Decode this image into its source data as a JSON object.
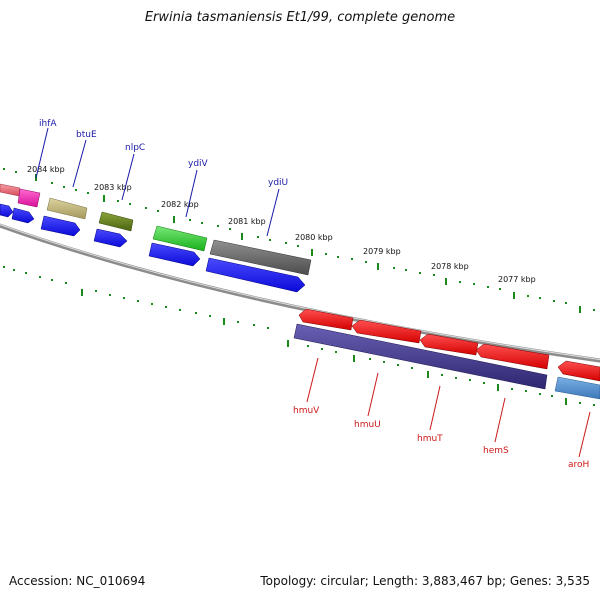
{
  "title": "Erwinia tasmaniensis Et1/99, complete genome",
  "accession": "Accession: NC_010694",
  "summary": "Topology: circular; Length: 3,883,467 bp; Genes: 3,535",
  "scale_labels": [
    "2084 kbp",
    "2083 kbp",
    "2082 kbp",
    "2081 kbp",
    "2080 kbp",
    "2079 kbp",
    "2078 kbp",
    "2077 kbp"
  ],
  "genes_top": [
    "ihfA",
    "btuE",
    "nlpC",
    "ydiV",
    "ydiU"
  ],
  "genes_bottom": [
    "hmuV",
    "hmuU",
    "hmuT",
    "hemS",
    "aroH"
  ],
  "colors": {
    "backbone": "#8c8c8c",
    "tick": "#1a8a1a",
    "label_top": "#1a1aa8",
    "label_bottom": "#cc1a1a",
    "cds_forward": "#1a1aee",
    "cds_reverse": "#3a2f88",
    "cds_red": "#ee1111"
  }
}
